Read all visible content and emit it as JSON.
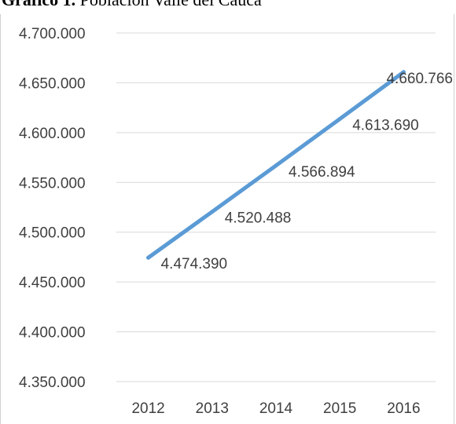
{
  "title": {
    "prefix": "Gráfico 1.",
    "text": "Población Valle del Cauca"
  },
  "chart_data": {
    "type": "line",
    "title": "",
    "xlabel": "",
    "ylabel": "",
    "categories": [
      "2012",
      "2013",
      "2014",
      "2015",
      "2016"
    ],
    "series": [
      {
        "values": [
          4474390,
          4520488,
          4566894,
          4613690,
          4660766
        ],
        "labels": [
          "4.474.390",
          "4.520.488",
          "4.566.894",
          "4.613.690",
          "4.660.766"
        ],
        "color": "#5B9BD5"
      }
    ],
    "ylim": [
      4350000,
      4700000
    ],
    "yticks": [
      4350000,
      4400000,
      4450000,
      4500000,
      4550000,
      4600000,
      4650000,
      4700000
    ],
    "ytick_labels": [
      "4.350.000",
      "4.400.000",
      "4.450.000",
      "4.500.000",
      "4.550.000",
      "4.600.000",
      "4.650.000",
      "4.700.000"
    ],
    "grid": true,
    "legend": "none",
    "gridline_color": "#d9d9d9"
  }
}
